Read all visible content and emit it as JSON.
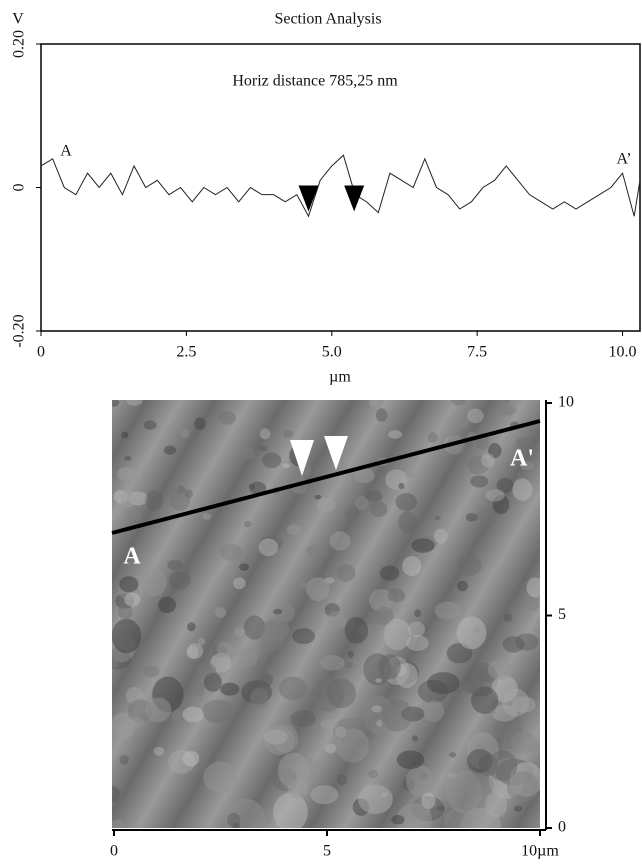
{
  "chart_data": [
    {
      "type": "line",
      "title": "Section Analysis",
      "ylabel": "V",
      "xlabel": "µm",
      "annotation": "Horiz distance 785,25 nm",
      "start_label": "A",
      "end_label": "A’",
      "x": [
        0,
        0.2,
        0.4,
        0.6,
        0.8,
        1.0,
        1.2,
        1.4,
        1.6,
        1.8,
        2.0,
        2.2,
        2.4,
        2.6,
        2.8,
        3.0,
        3.2,
        3.4,
        3.6,
        3.8,
        4.0,
        4.2,
        4.4,
        4.6,
        4.8,
        5.0,
        5.2,
        5.4,
        5.6,
        5.8,
        6.0,
        6.2,
        6.4,
        6.6,
        6.8,
        7.0,
        7.2,
        7.4,
        7.6,
        7.8,
        8.0,
        8.2,
        8.4,
        8.6,
        8.8,
        9.0,
        9.2,
        9.4,
        9.6,
        9.8,
        10.0,
        10.2,
        10.3
      ],
      "series": [
        {
          "color": "#222222",
          "values": [
            0.03,
            0.04,
            0.0,
            -0.01,
            0.02,
            0.0,
            0.02,
            -0.01,
            0.03,
            0.0,
            0.01,
            -0.01,
            0.0,
            -0.02,
            0.0,
            -0.01,
            0.0,
            -0.02,
            0.0,
            -0.01,
            -0.01,
            -0.02,
            -0.01,
            -0.04,
            0.01,
            0.03,
            0.045,
            -0.01,
            -0.02,
            -0.035,
            0.02,
            0.01,
            0.0,
            0.04,
            0.0,
            -0.01,
            -0.03,
            -0.02,
            0.0,
            0.01,
            0.03,
            0.01,
            -0.01,
            -0.02,
            -0.03,
            -0.02,
            -0.03,
            -0.02,
            -0.01,
            0.0,
            0.02,
            -0.04,
            0.01
          ]
        }
      ],
      "cursors": [
        4.6,
        5.385
      ],
      "xlim": [
        0,
        10.3
      ],
      "ylim": [
        -0.2,
        0.2
      ],
      "xticks": [
        0,
        2.5,
        {
          "value": 5,
          "label": "5.0"
        },
        7.5,
        {
          "value": 10,
          "label": "10.0"
        }
      ],
      "yticks": [
        {
          "value": -0.2,
          "label": "-0.20"
        },
        0,
        {
          "value": 0.2,
          "label": "0.20"
        }
      ]
    },
    {
      "type": "image",
      "start_label": "A",
      "end_label": "A'",
      "xlim": [
        0,
        10
      ],
      "ylim": [
        0,
        10
      ],
      "xticks": [
        0,
        5,
        {
          "value": 10,
          "label": "10µm"
        }
      ],
      "yticks": [
        0,
        5,
        10
      ]
    }
  ]
}
